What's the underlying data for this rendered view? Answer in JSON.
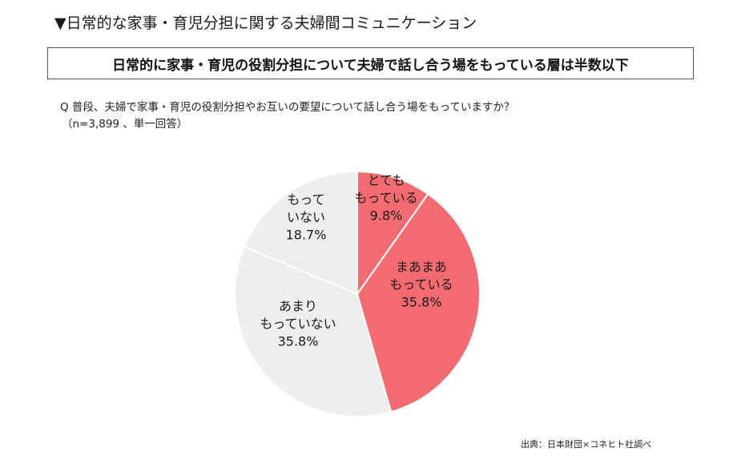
{
  "heading": "▼日常的な家事・育児分担に関する夫婦間コミュニケーション",
  "headline": "日常的に家事・育児の役割分担について夫婦で話し合う場をもっている層は半数以下",
  "question": {
    "text": "Q 普段、夫婦で家事・育児の役割分担やお互いの要望について話し合う場をもっていますか？",
    "note": "（n=3,899 、単一回答）"
  },
  "source": "出典：日本財団×コネヒト社調べ",
  "colors": {
    "accent": "#f46b72",
    "neutral": "#eeeeee",
    "border": "#ffffff"
  },
  "chart_data": {
    "type": "pie",
    "unit": "%",
    "start": "12 o'clock, clockwise",
    "slices": [
      {
        "label_lines": [
          "とても",
          "もっている"
        ],
        "value": 9.8,
        "display": "9.8%",
        "color": "#f46b72"
      },
      {
        "label_lines": [
          "まあまあ",
          "もっている"
        ],
        "value": 35.8,
        "display": "35.8%",
        "color": "#f46b72"
      },
      {
        "label_lines": [
          "あまり",
          "もっていない"
        ],
        "value": 35.8,
        "display": "35.8%",
        "color": "#eeeeee"
      },
      {
        "label_lines": [
          "もって",
          "いない"
        ],
        "value": 18.7,
        "display": "18.7%",
        "color": "#eeeeee"
      }
    ]
  }
}
